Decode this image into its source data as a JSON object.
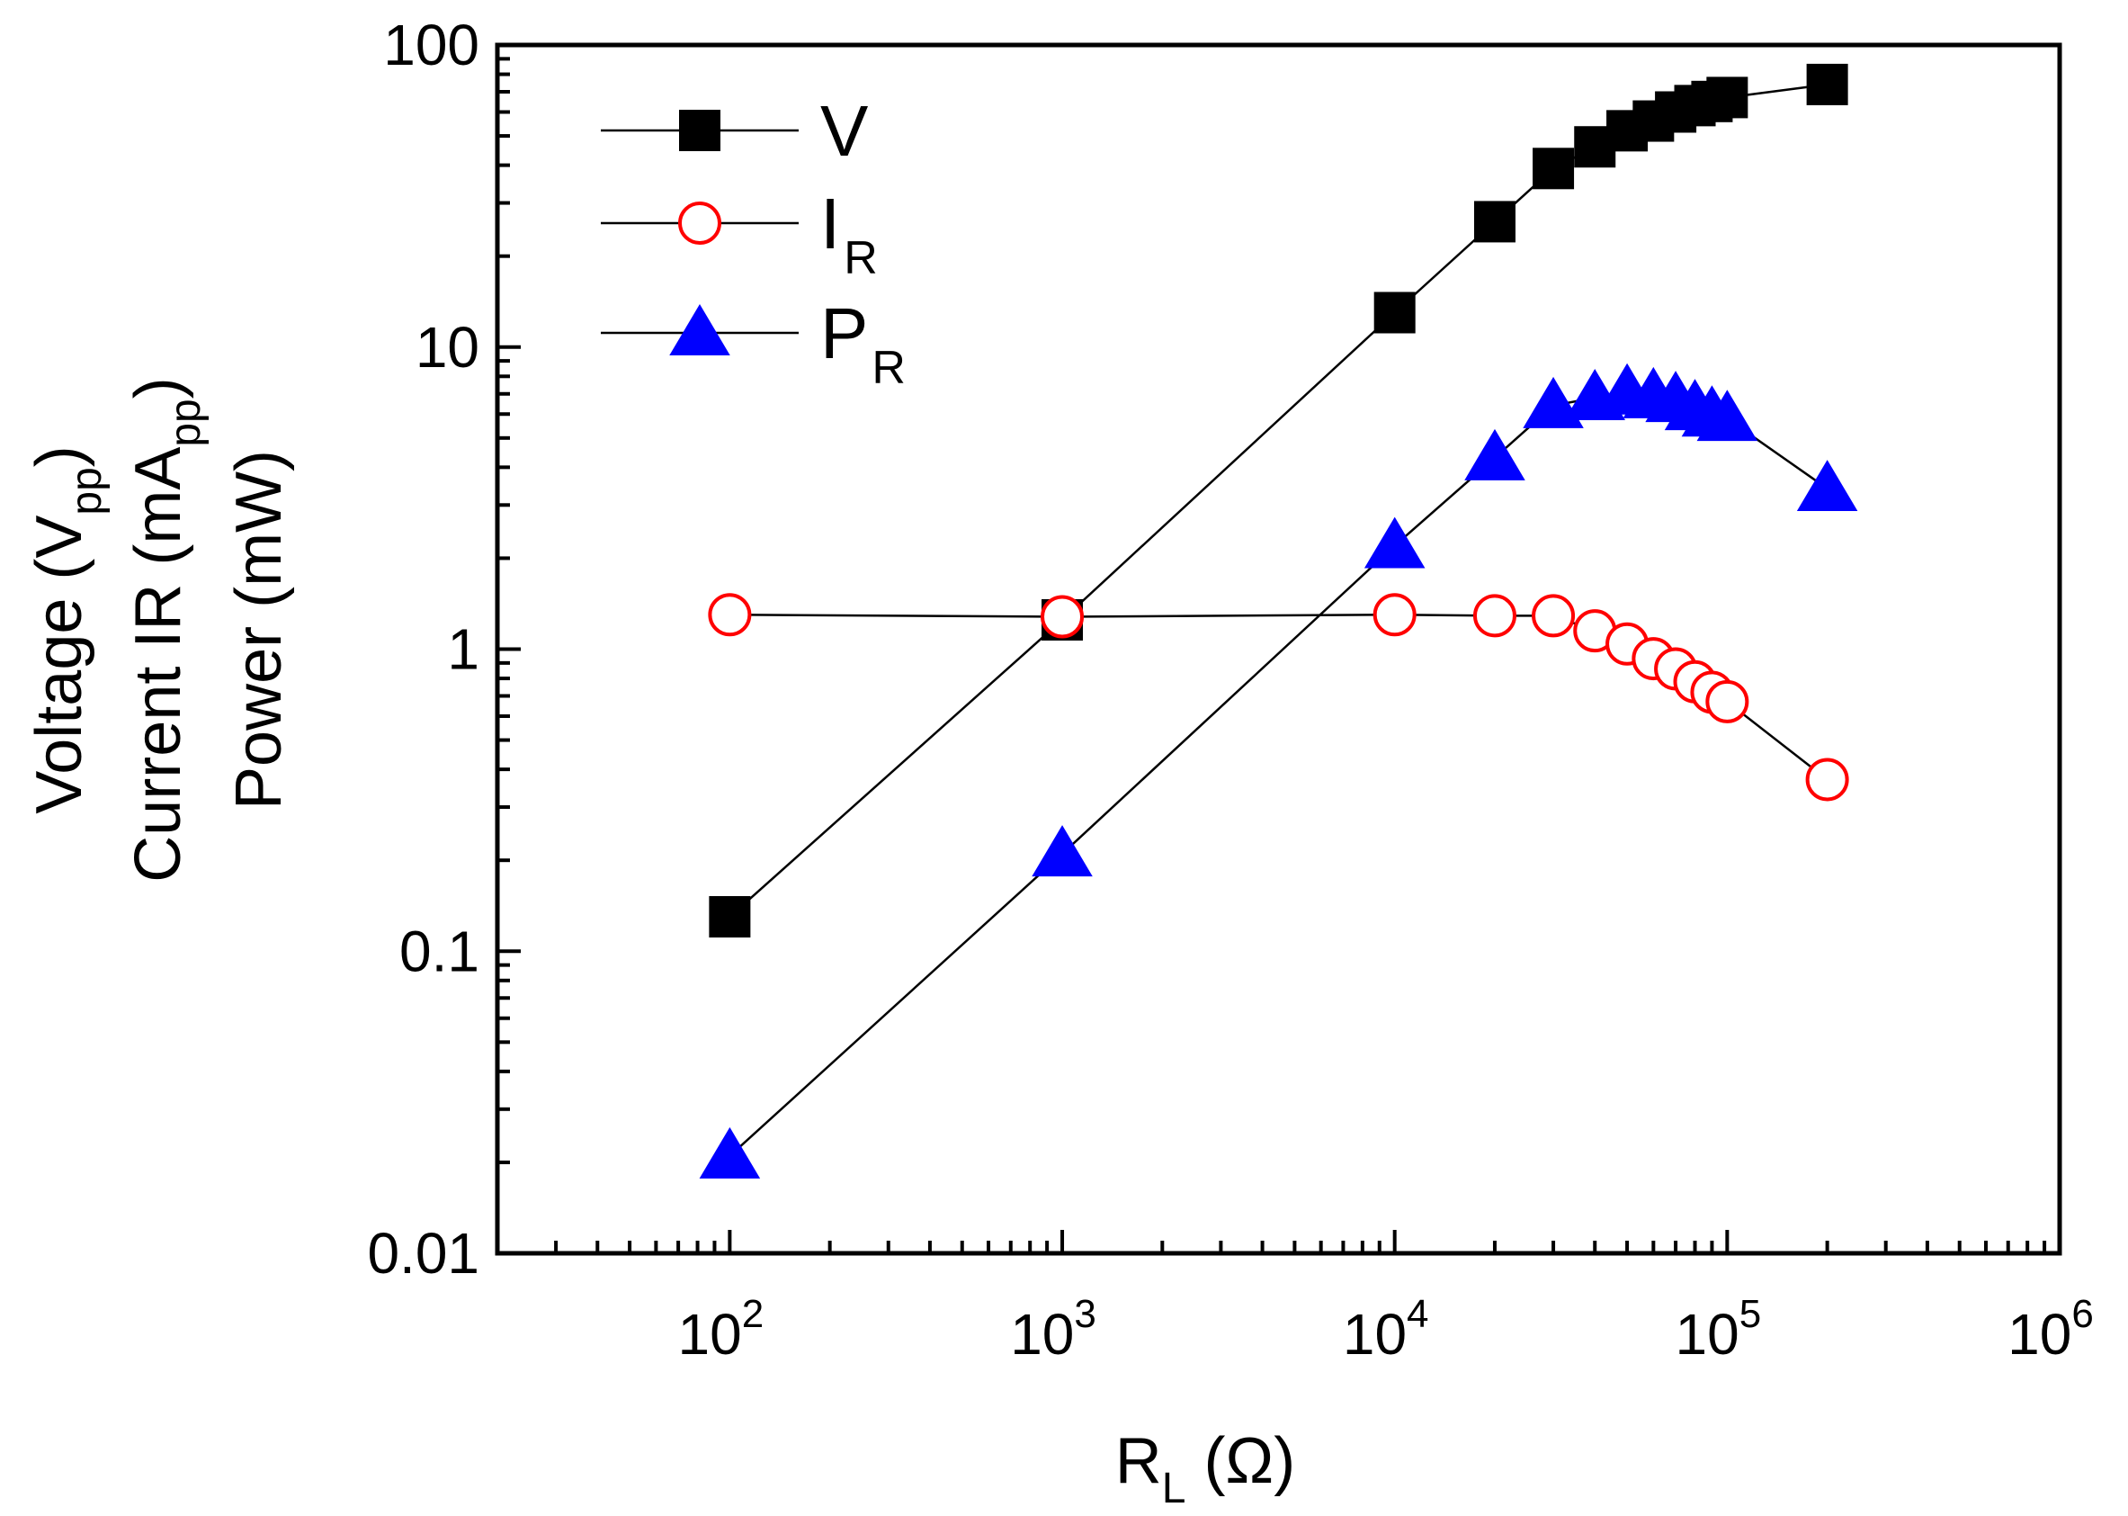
{
  "chart_data": {
    "type": "line",
    "scale": {
      "x": "log",
      "y": "log"
    },
    "xlim": [
      20,
      1000000
    ],
    "ylim": [
      0.01,
      100
    ],
    "x_ticks": [
      {
        "value": 100,
        "base": "10",
        "exp": "2"
      },
      {
        "value": 1000,
        "base": "10",
        "exp": "3"
      },
      {
        "value": 10000,
        "base": "10",
        "exp": "4"
      },
      {
        "value": 100000,
        "base": "10",
        "exp": "5"
      },
      {
        "value": 1000000,
        "base": "10",
        "exp": "6"
      }
    ],
    "y_ticks": [
      {
        "value": 100,
        "label": "100"
      },
      {
        "value": 10,
        "label": "10"
      },
      {
        "value": 1,
        "label": "1"
      },
      {
        "value": 0.1,
        "label": "0.1"
      },
      {
        "value": 0.01,
        "label": "0.01"
      }
    ],
    "xlabel": {
      "main": "R",
      "sub": "L",
      "unit": " (Ω)"
    },
    "ylabel": {
      "line1": {
        "pre": "Voltage (V",
        "sub": "pp",
        "post": ")"
      },
      "line2": {
        "pre": "Current IR (mA",
        "sub": "pp",
        "post": ")"
      },
      "line3": {
        "pre": "Power (mW)"
      }
    },
    "legend_position": "top-left",
    "x": [
      100,
      1000,
      10000,
      20000,
      30000,
      40000,
      50000,
      60000,
      70000,
      80000,
      90000,
      100000,
      200000
    ],
    "series": [
      {
        "name": "V",
        "sub": "",
        "marker": "square",
        "filled": true,
        "color": "#000000",
        "values": [
          0.13,
          1.25,
          13,
          26,
          39,
          46,
          52,
          56,
          60,
          63,
          65,
          67,
          74
        ]
      },
      {
        "name": "I",
        "sub": "R",
        "marker": "circle",
        "filled": false,
        "color": "#ff0000",
        "values": [
          1.3,
          1.28,
          1.3,
          1.29,
          1.29,
          1.15,
          1.04,
          0.93,
          0.86,
          0.78,
          0.72,
          0.67,
          0.37
        ]
      },
      {
        "name": "P",
        "sub": "R",
        "marker": "triangle",
        "filled": true,
        "color": "#0000ff",
        "values": [
          0.021,
          0.21,
          2.2,
          4.3,
          6.4,
          6.8,
          7.1,
          6.9,
          6.7,
          6.3,
          6.0,
          5.8,
          3.4
        ]
      }
    ]
  }
}
